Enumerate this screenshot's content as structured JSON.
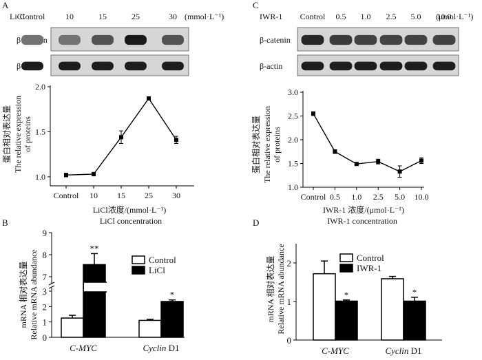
{
  "panels": {
    "A": {
      "letter": "A",
      "blot": {
        "treatment_label": "LiCl",
        "lanes": [
          "Control",
          "10",
          "15",
          "25",
          "30"
        ],
        "unit": "(mmol·L⁻¹)",
        "band_labels": [
          "β-catenin",
          "β-actin"
        ],
        "catenin_intensity": [
          0.45,
          0.45,
          0.62,
          0.92,
          0.62
        ],
        "actin_intensity": [
          0.9,
          0.9,
          0.9,
          0.9,
          0.9
        ]
      },
      "ylabel_cn": "蛋白相对表达量",
      "ylabel_en": [
        "The relative expression",
        "of proteins"
      ],
      "xlabel_cn": "LiCl浓度/(mmol·L⁻¹)",
      "xlabel_en": "LiCl concentration"
    },
    "B": {
      "letter": "B",
      "ylabel_cn": "mRNA 相对表达量",
      "ylabel_en": "Relative mRNA abundance",
      "legend": [
        "Control",
        "LiCl"
      ]
    },
    "C": {
      "letter": "C",
      "blot": {
        "treatment_label": "IWR-1",
        "lanes": [
          "Control",
          "0.5",
          "1.0",
          "2.5",
          "5.0",
          "10.0"
        ],
        "unit": "(μmol·L⁻¹)",
        "band_labels": [
          "β-catenin",
          "β-actin"
        ],
        "catenin_intensity": [
          0.85,
          0.75,
          0.7,
          0.7,
          0.7,
          0.7
        ],
        "actin_intensity": [
          0.9,
          0.9,
          0.9,
          0.9,
          0.9,
          0.9
        ]
      },
      "ylabel_cn": "蛋白相对表达量",
      "ylabel_en": [
        "The relative expression",
        "of proteins"
      ],
      "xlabel_cn": "IWR-1 浓度/(μmol·L⁻¹)",
      "xlabel_en": "IWR-1 concentration"
    },
    "D": {
      "letter": "D",
      "ylabel_cn": "mRNA 相对表达量",
      "ylabel_en": "Relative mRNA abundance",
      "legend": [
        "Control",
        "IWR-1"
      ]
    }
  },
  "chart_data": [
    {
      "panel": "A",
      "type": "line",
      "categories": [
        "Control",
        "10",
        "15",
        "25",
        "30"
      ],
      "values": [
        1.02,
        1.03,
        1.44,
        1.87,
        1.41
      ],
      "errors": [
        0.02,
        0.02,
        0.07,
        0.01,
        0.04
      ],
      "yticks": [
        "1.0",
        "1.5",
        "2.0"
      ],
      "ylim": [
        0.9,
        2.0
      ]
    },
    {
      "panel": "C",
      "type": "line",
      "categories": [
        "Control",
        "0.5",
        "1.0",
        "2.5",
        "5.0",
        "10.0"
      ],
      "values": [
        2.55,
        1.75,
        1.49,
        1.54,
        1.33,
        1.56
      ],
      "errors": [
        0.04,
        0.04,
        0.02,
        0.05,
        0.12,
        0.06
      ],
      "yticks": [
        "1.0",
        "1.5",
        "2.0",
        "2.5",
        "3.0"
      ],
      "ylim": [
        1.0,
        3.0
      ]
    },
    {
      "panel": "B",
      "type": "bar",
      "categories": [
        "C-MYC",
        "Cyclin D1"
      ],
      "category_parts": [
        [
          "C-MYC",
          ""
        ],
        [
          "Cyclin",
          " D1"
        ]
      ],
      "series": [
        {
          "name": "Control",
          "values": [
            1.25,
            1.1
          ],
          "errors": [
            0.18,
            0.07
          ]
        },
        {
          "name": "LiCl",
          "values": [
            7.55,
            2.33
          ],
          "errors": [
            0.5,
            0.1
          ]
        }
      ],
      "significance": [
        [
          "",
          "**"
        ],
        [
          "",
          "*"
        ]
      ],
      "axis_break": true,
      "yticks": [
        "0",
        "1",
        "2",
        "3",
        "7",
        "8",
        "9"
      ]
    },
    {
      "panel": "D",
      "type": "bar",
      "categories": [
        "C-MYC",
        "Cyclin D1"
      ],
      "category_parts": [
        [
          "C-MYC",
          ""
        ],
        [
          "Cyclin",
          " D1"
        ]
      ],
      "series": [
        {
          "name": "Control",
          "values": [
            1.72,
            1.59
          ],
          "errors": [
            0.33,
            0.06
          ]
        },
        {
          "name": "IWR-1",
          "values": [
            1.01,
            1.01
          ],
          "errors": [
            0.03,
            0.1
          ]
        }
      ],
      "significance": [
        [
          "",
          "*"
        ],
        [
          "",
          "*"
        ]
      ],
      "yticks": [
        "0",
        "1",
        "2"
      ],
      "ylim": [
        0,
        2.5
      ]
    }
  ]
}
